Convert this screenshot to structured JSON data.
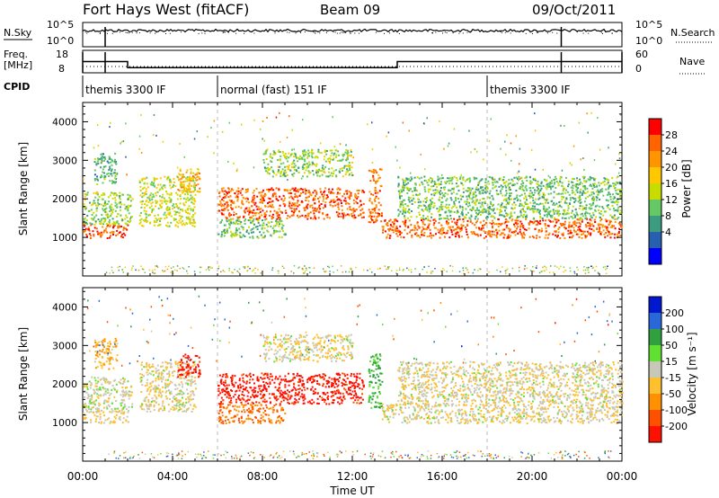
{
  "header": {
    "station": "Fort Hays West (fitACF)",
    "beam": "Beam 09",
    "date": "09/Oct/2011"
  },
  "noise_panel": {
    "left_label": "N.Sky",
    "left_ticks": [
      "10^5",
      "10^0"
    ],
    "right_ticks": [
      "10^5",
      "10^0"
    ],
    "right_label": "N.Search"
  },
  "freq_panel": {
    "left_label_1": "Freq.",
    "left_label_2": "[MHz]",
    "left_ticks": [
      "18",
      "8"
    ],
    "right_ticks": [
      "60",
      "0"
    ],
    "right_label": "Nave",
    "freq_steps": [
      {
        "from": 0.0,
        "to": 2.0,
        "mhz": 13.0
      },
      {
        "from": 2.0,
        "to": 14.0,
        "mhz": 10.3
      },
      {
        "from": 14.0,
        "to": 24.0,
        "mhz": 13.0
      }
    ],
    "markers": [
      0.0,
      1.0,
      21.3,
      24.0
    ]
  },
  "cpid": {
    "label": "CPID",
    "segments": [
      {
        "start": 0.0,
        "text": "themis 3300 IF"
      },
      {
        "start": 6.0,
        "text": "normal (fast) 151 IF"
      },
      {
        "start": 18.0,
        "text": "themis 3300 IF"
      }
    ]
  },
  "power_panel": {
    "ylabel": "Slant Range [km]",
    "cbar_label": "Power [dB]",
    "cbar_ticks": [
      "28",
      "24",
      "20",
      "16",
      "12",
      "8",
      "4"
    ],
    "cbar_colors": [
      "#ff0000",
      "#ff6400",
      "#ff9600",
      "#ffc800",
      "#c8dc00",
      "#64c864",
      "#3c9c80",
      "#2860b0",
      "#0000ff"
    ]
  },
  "velocity_panel": {
    "ylabel": "Slant Range [km]",
    "cbar_label": "Velocity [m s⁻¹]",
    "cbar_ticks": [
      "200",
      "100",
      "50",
      "15",
      "-15",
      "-50",
      "-100",
      "-200"
    ],
    "cbar_colors": [
      "#0018d0",
      "#2868d8",
      "#30a040",
      "#60e030",
      "#c8c8b8",
      "#ffc030",
      "#ff9000",
      "#ff5000",
      "#ff1000"
    ]
  },
  "x_axis": {
    "label": "Time UT",
    "ticks": [
      "00:00",
      "04:00",
      "08:00",
      "12:00",
      "16:00",
      "20:00",
      "00:00"
    ]
  },
  "chart_data": {
    "type": "heatmap",
    "x_unit": "hours UT",
    "xlim": [
      0,
      24
    ],
    "ylim": [
      0,
      4500
    ],
    "y_ticks": [
      1000,
      2000,
      3000,
      4000
    ],
    "cpid_boundaries": [
      6.0,
      18.0
    ],
    "scatter_regions": [
      {
        "t0": 0.0,
        "t1": 2.0,
        "r0": 1000,
        "r1": 1350,
        "power": 28,
        "velocity": -15
      },
      {
        "t0": 0.0,
        "t1": 2.2,
        "r0": 1350,
        "r1": 2200,
        "power": 14,
        "velocity": 0
      },
      {
        "t0": 0.5,
        "t1": 1.5,
        "r0": 2400,
        "r1": 3200,
        "power": 10,
        "velocity": -40
      },
      {
        "t0": 2.5,
        "t1": 5.0,
        "r0": 1300,
        "r1": 2600,
        "power": 16,
        "velocity": -10
      },
      {
        "t0": 4.2,
        "t1": 5.2,
        "r0": 2200,
        "r1": 2800,
        "power": 22,
        "velocity": -220
      },
      {
        "t0": 6.0,
        "t1": 9.0,
        "r0": 1000,
        "r1": 1500,
        "power": 12,
        "velocity": -100
      },
      {
        "t0": 6.0,
        "t1": 12.5,
        "r0": 1500,
        "r1": 2300,
        "power": 28,
        "velocity": -220
      },
      {
        "t0": 8.0,
        "t1": 12.0,
        "r0": 2600,
        "r1": 3300,
        "power": 14,
        "velocity": -10
      },
      {
        "t0": 12.7,
        "t1": 13.3,
        "r0": 1400,
        "r1": 2800,
        "power": 26,
        "velocity": 60
      },
      {
        "t0": 13.3,
        "t1": 24.0,
        "r0": 1000,
        "r1": 1500,
        "power": 28,
        "velocity": -10
      },
      {
        "t0": 14.0,
        "t1": 24.0,
        "r0": 1500,
        "r1": 2600,
        "power": 12,
        "velocity": -10
      }
    ],
    "ground_scatter_note": ""
  }
}
